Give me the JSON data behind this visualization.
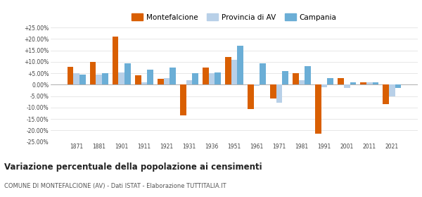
{
  "years": [
    1871,
    1881,
    1901,
    1911,
    1921,
    1931,
    1936,
    1951,
    1961,
    1971,
    1981,
    1991,
    2001,
    2011,
    2021
  ],
  "montefalcione": [
    7.8,
    10.0,
    21.0,
    4.0,
    2.5,
    -13.5,
    7.5,
    12.0,
    -10.5,
    -6.0,
    5.0,
    -21.5,
    3.0,
    1.0,
    -8.5
  ],
  "provincia_av": [
    5.0,
    4.5,
    5.5,
    1.0,
    3.0,
    2.0,
    5.0,
    11.0,
    -0.5,
    -8.0,
    2.0,
    -1.0,
    -1.5,
    1.0,
    -5.0
  ],
  "campania": [
    4.5,
    5.0,
    9.5,
    6.5,
    7.5,
    5.0,
    5.5,
    17.0,
    9.5,
    6.0,
    8.0,
    3.0,
    1.0,
    1.0,
    -1.5
  ],
  "color_monte": "#d95f02",
  "color_prov": "#b8d0e8",
  "color_camp": "#6baed6",
  "title": "Variazione percentuale della popolazione ai censimenti",
  "subtitle": "COMUNE DI MONTEFALCIONE (AV) - Dati ISTAT - Elaborazione TUTTITALIA.IT",
  "ylim": [
    -25,
    25
  ],
  "yticks": [
    -25,
    -20,
    -15,
    -10,
    -5,
    0,
    5,
    10,
    15,
    20,
    25
  ],
  "ytick_labels": [
    "-25.00%",
    "-20.00%",
    "-15.00%",
    "-10.00%",
    "-5.00%",
    "0.00%",
    "+5.00%",
    "+10.00%",
    "+15.00%",
    "+20.00%",
    "+25.00%"
  ],
  "bar_width": 0.27,
  "background_color": "#ffffff",
  "grid_color": "#dddddd"
}
